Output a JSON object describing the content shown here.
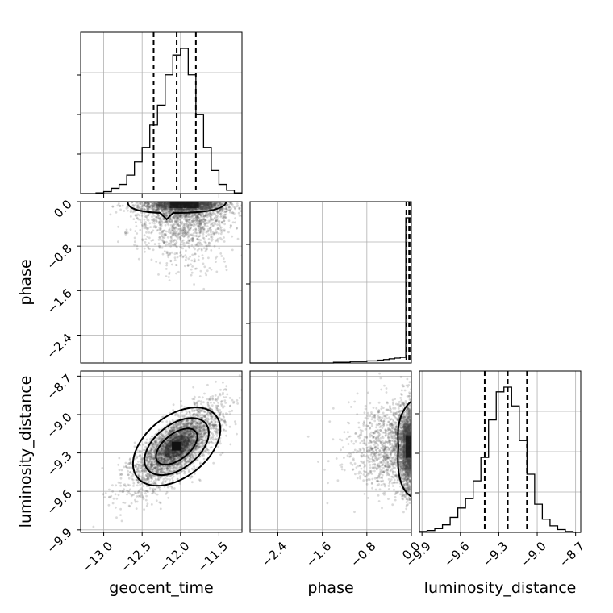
{
  "chart_data": {
    "type": "corner",
    "parameters": [
      "geocent_time",
      "phase",
      "luminosity_distance"
    ],
    "grid": true,
    "ranges": {
      "geocent_time": [
        -13.3,
        -11.2
      ],
      "phase": [
        -2.9,
        0.0
      ],
      "luminosity_distance": [
        -9.92,
        -8.66
      ]
    },
    "ticks": {
      "geocent_time": [
        -13.0,
        -12.5,
        -12.0,
        -11.5
      ],
      "phase": [
        -2.4,
        -1.6,
        -0.8,
        0.0
      ],
      "luminosity_distance": [
        -9.9,
        -9.6,
        -9.3,
        -9.0,
        -8.7
      ]
    },
    "tick_labels": {
      "geocent_time": [
        "−13.0",
        "−12.5",
        "−12.0",
        "−11.5"
      ],
      "phase": [
        "−2.4",
        "−1.6",
        "−0.8",
        "0.0"
      ],
      "luminosity_distance": [
        "−9.9",
        "−9.6",
        "−9.3",
        "−9.0",
        "−8.7"
      ]
    },
    "histograms": {
      "geocent_time": {
        "bin_edges": [
          -13.3,
          -13.2,
          -13.1,
          -13.0,
          -12.9,
          -12.8,
          -12.7,
          -12.6,
          -12.5,
          -12.4,
          -12.3,
          -12.2,
          -12.1,
          -12.0,
          -11.9,
          -11.8,
          -11.7,
          -11.6,
          -11.5,
          -11.4,
          -11.3,
          -11.2
        ],
        "counts": [
          0,
          0,
          1,
          3,
          8,
          14,
          28,
          48,
          70,
          104,
          134,
          180,
          210,
          220,
          180,
          120,
          70,
          35,
          14,
          5,
          1
        ],
        "quantiles": [
          -12.35,
          -12.05,
          -11.8
        ]
      },
      "phase": {
        "bin_edges": [
          -2.9,
          -2.8,
          -2.7,
          -2.6,
          -2.5,
          -2.4,
          -2.3,
          -2.2,
          -2.1,
          -2.0,
          -1.9,
          -1.8,
          -1.7,
          -1.6,
          -1.5,
          -1.4,
          -1.3,
          -1.2,
          -1.1,
          -1.0,
          -0.9,
          -0.8,
          -0.7,
          -0.6,
          -0.5,
          -0.4,
          -0.3,
          -0.2,
          -0.1,
          0.0
        ],
        "counts": [
          0,
          0,
          0,
          0,
          0,
          0,
          0,
          0,
          0,
          0,
          0,
          0,
          0,
          0,
          0,
          1,
          1,
          1,
          2,
          2,
          2,
          3,
          3,
          4,
          5,
          6,
          7,
          8,
          210
        ],
        "quantiles": [
          -0.09,
          -0.04,
          -0.01
        ]
      },
      "luminosity_distance": {
        "bin_edges": [
          -9.92,
          -9.86,
          -9.8,
          -9.74,
          -9.68,
          -9.62,
          -9.56,
          -9.5,
          -9.44,
          -9.38,
          -9.32,
          -9.26,
          -9.2,
          -9.14,
          -9.08,
          -9.02,
          -8.96,
          -8.9,
          -8.84,
          -8.78,
          -8.72,
          -8.66
        ],
        "counts": [
          1,
          2,
          4,
          8,
          16,
          26,
          36,
          55,
          80,
          120,
          150,
          155,
          135,
          98,
          62,
          30,
          14,
          7,
          3,
          1,
          0
        ],
        "quantiles": [
          -9.41,
          -9.23,
          -9.08
        ]
      }
    },
    "scatter_2d": [
      {
        "x_param": "geocent_time",
        "y_param": "phase",
        "x_center": -11.95,
        "x_sd": 0.3,
        "y_mode": 0.0,
        "y_scale": 0.35,
        "points": 2600
      },
      {
        "x_param": "geocent_time",
        "y_param": "luminosity_distance",
        "x_center": -12.05,
        "x_sd": 0.3,
        "y_center": -9.25,
        "y_sd": 0.17,
        "correlation": 0.75,
        "points": 2600
      },
      {
        "x_param": "phase",
        "y_param": "luminosity_distance",
        "x_mode": 0.0,
        "x_scale": 0.35,
        "y_center": -9.25,
        "y_sd": 0.17,
        "points": 2600
      }
    ]
  }
}
